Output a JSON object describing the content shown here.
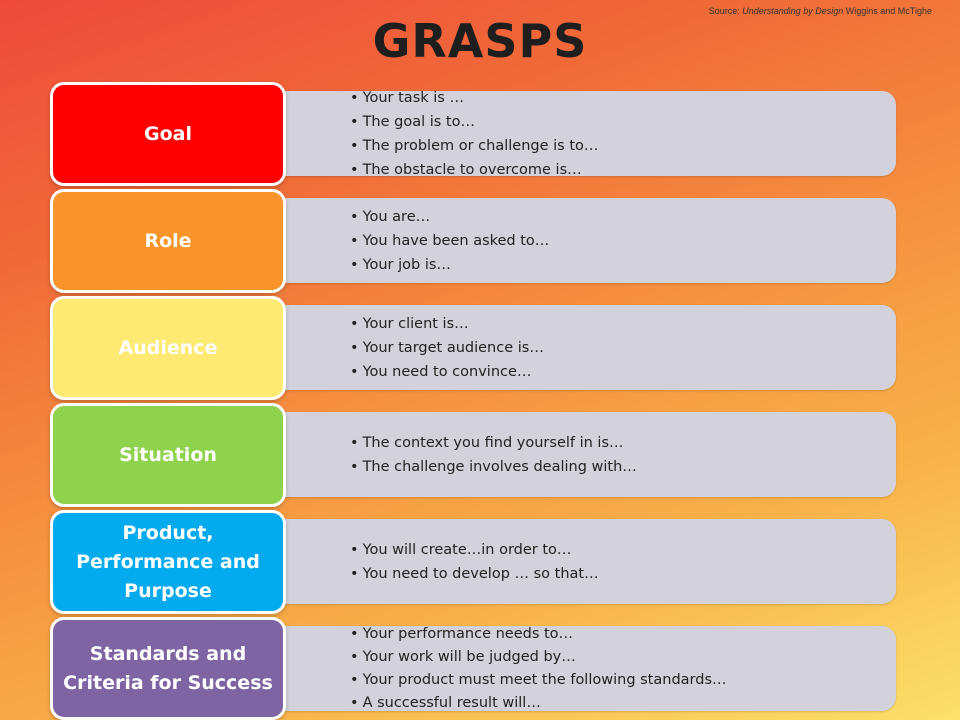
{
  "title": "GRASPS",
  "source": {
    "prefix": "Source: ",
    "book": "Understanding by Design",
    "authors": " Wiggins and McTighe"
  },
  "colors": {
    "goal": "#ff0000",
    "role": "#f8952a",
    "audience": "#fee972",
    "situation": "#8fd24e",
    "product": "#04aaee",
    "standards": "#7f64a4",
    "panel": "#d3d1d9"
  },
  "rows": [
    {
      "label": "Goal",
      "bullets": [
        "Your task is …",
        "The goal is to…",
        "The problem or challenge is to…",
        "The obstacle to overcome is…"
      ]
    },
    {
      "label": "Role",
      "bullets": [
        "You are…",
        "You have been asked to…",
        "Your job is…"
      ]
    },
    {
      "label": "Audience",
      "bullets": [
        "Your client is…",
        "Your target audience is…",
        "You need to convince…"
      ]
    },
    {
      "label": "Situation",
      "bullets": [
        "The context you find yourself in is…",
        "The challenge involves dealing with…"
      ]
    },
    {
      "label": "Product, Performance and Purpose",
      "bullets": [
        "You will create…in order to…",
        "You need to develop … so that…"
      ]
    },
    {
      "label": "Standards and Criteria for Success",
      "bullets": [
        "Your performance needs to…",
        "Your work will be judged by…",
        "Your product must meet the following standards…",
        "A successful result will…"
      ]
    }
  ]
}
